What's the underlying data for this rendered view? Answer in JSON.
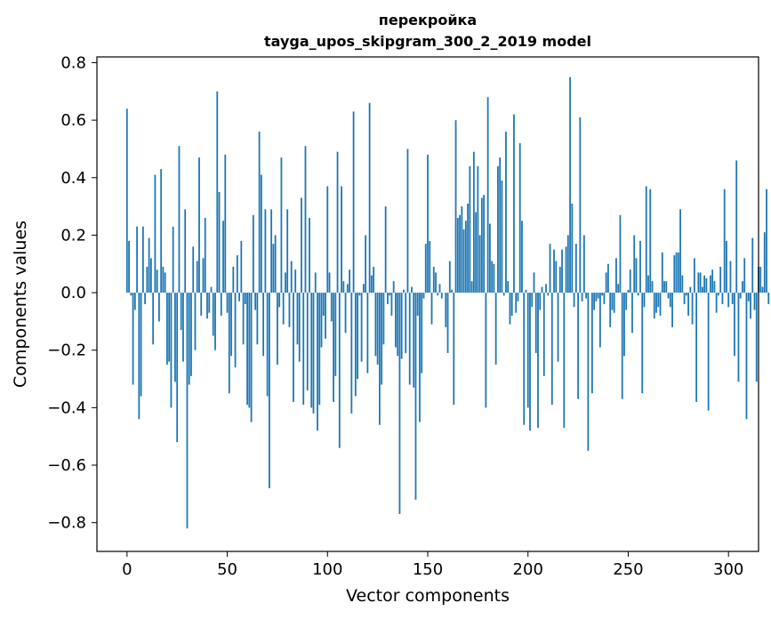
{
  "chart_data": {
    "type": "bar",
    "title": "перекройка",
    "subtitle": "tayga_upos_skipgram_300_2_2019 model",
    "xlabel": "Vector components",
    "ylabel": "Components values",
    "xlim": [
      -15,
      315
    ],
    "ylim": [
      -0.9,
      0.82
    ],
    "xticks": [
      0,
      50,
      100,
      150,
      200,
      250,
      300
    ],
    "yticks": [
      -0.8,
      -0.6,
      -0.4,
      -0.2,
      0.0,
      0.2,
      0.4,
      0.6,
      0.8
    ],
    "ytick_labels": [
      "−0.8",
      "−0.6",
      "−0.4",
      "−0.2",
      "0.0",
      "0.2",
      "0.4",
      "0.6",
      "0.8"
    ],
    "bar_color": "#1f77b4",
    "grid": false,
    "legend": "none",
    "series": [
      {
        "values": [
          0.64,
          0.18,
          -0.01,
          -0.32,
          -0.06,
          0.23,
          -0.44,
          -0.36,
          0.23,
          -0.04,
          0.09,
          0.19,
          0.12,
          -0.18,
          0.41,
          0.08,
          -0.1,
          0.43,
          0.09,
          0.07,
          -0.25,
          -0.24,
          -0.4,
          0.23,
          -0.31,
          -0.52,
          0.51,
          -0.13,
          -0.24,
          0.29,
          -0.82,
          -0.32,
          -0.29,
          0.16,
          -0.2,
          0.11,
          0.47,
          -0.08,
          0.12,
          0.26,
          -0.09,
          -0.07,
          0.02,
          -0.15,
          -0.2,
          0.7,
          0.35,
          -0.08,
          0.25,
          0.48,
          -0.07,
          -0.35,
          -0.22,
          0.09,
          -0.26,
          0.13,
          -0.03,
          0.18,
          -0.18,
          -0.04,
          -0.39,
          -0.4,
          -0.45,
          0.27,
          -0.06,
          -0.18,
          0.56,
          0.41,
          -0.22,
          0.29,
          -0.36,
          -0.68,
          0.29,
          0.17,
          0.2,
          -0.25,
          -0.05,
          0.47,
          -0.11,
          0.07,
          0.29,
          -0.12,
          0.11,
          -0.38,
          0.08,
          -0.18,
          -0.24,
          0.33,
          -0.39,
          0.51,
          -0.34,
          0.26,
          -0.4,
          -0.42,
          0.07,
          -0.48,
          -0.39,
          -0.19,
          -0.08,
          -0.16,
          0.37,
          0.07,
          -0.1,
          -0.38,
          -0.29,
          0.49,
          -0.54,
          0.37,
          0.04,
          -0.14,
          0.03,
          0.08,
          -0.42,
          0.63,
          -0.36,
          -0.3,
          -0.01,
          -0.24,
          0.03,
          0.2,
          -0.28,
          0.66,
          0.06,
          0.09,
          -0.22,
          -0.25,
          -0.46,
          -0.32,
          -0.18,
          0.3,
          -0.04,
          -0.01,
          -0.08,
          0.04,
          -0.19,
          -0.22,
          -0.77,
          -0.23,
          0.01,
          -0.21,
          0.5,
          -0.32,
          0.02,
          -0.33,
          -0.72,
          -0.08,
          -0.45,
          -0.28,
          -0.02,
          0.17,
          0.48,
          0.18,
          -0.11,
          0.09,
          0.07,
          -0.01,
          0.03,
          -0.02,
          0.0,
          -0.12,
          -0.21,
          0.11,
          0.01,
          -0.39,
          0.6,
          0.26,
          0.27,
          0.3,
          0.22,
          0.25,
          0.31,
          0.44,
          0.04,
          0.49,
          0.28,
          0.44,
          0.2,
          0.33,
          0.34,
          -0.4,
          0.68,
          0.24,
          0.11,
          0.1,
          -0.25,
          0.44,
          0.47,
          0.39,
          -0.01,
          0.56,
          0.04,
          -0.11,
          -0.08,
          0.62,
          -0.07,
          -0.03,
          0.52,
          0.25,
          -0.46,
          0.01,
          -0.4,
          -0.48,
          -0.05,
          0.07,
          -0.21,
          -0.47,
          -0.06,
          0.02,
          -0.29,
          0.03,
          -0.01,
          0.17,
          -0.39,
          0.15,
          0.11,
          -0.24,
          0.09,
          0.15,
          -0.47,
          0.16,
          0.2,
          0.75,
          0.31,
          -0.05,
          0.17,
          -0.37,
          0.61,
          -0.03,
          0.2,
          -0.02,
          -0.55,
          0.0,
          -0.35,
          -0.06,
          -0.03,
          -0.02,
          -0.19,
          -0.01,
          -0.04,
          0.07,
          0.1,
          -0.12,
          -0.06,
          -0.07,
          0.12,
          0.03,
          0.27,
          -0.37,
          -0.22,
          -0.06,
          0.01,
          0.08,
          -0.14,
          0.2,
          0.12,
          -0.01,
          0.18,
          -0.35,
          -0.05,
          0.37,
          0.06,
          0.36,
          0.04,
          -0.09,
          -0.07,
          -0.05,
          -0.08,
          0.14,
          0.04,
          0.04,
          -0.02,
          -0.05,
          -0.12,
          0.13,
          0.14,
          0.14,
          0.29,
          0.06,
          -0.04,
          -0.01,
          -0.08,
          0.02,
          -0.11,
          0.12,
          -0.38,
          0.07,
          0.07,
          0.02,
          0.06,
          0.05,
          -0.41,
          0.06,
          0.08,
          0.04,
          -0.07,
          -0.01,
          0.09,
          -0.04,
          0.36,
          0.18,
          -0.05,
          0.11,
          -0.04,
          -0.22,
          0.46,
          -0.31,
          -0.02,
          0.04,
          0.12,
          -0.44,
          -0.03,
          -0.09,
          0.19,
          -0.06,
          -0.31,
          0.09,
          0.09,
          0.02,
          0.21,
          0.36,
          -0.04
        ],
        "color": "#1f77b4"
      }
    ]
  }
}
